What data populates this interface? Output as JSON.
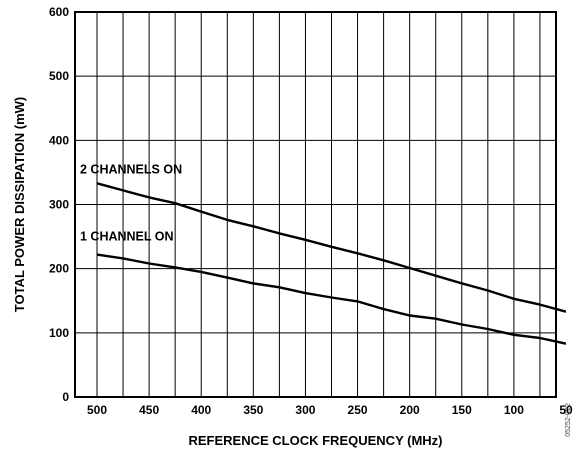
{
  "chart_data": {
    "type": "line",
    "xlabel": "REFERENCE CLOCK FREQUENCY (MHz)",
    "ylabel": "TOTAL POWER DISSIPATION (mW)",
    "xlim": [
      500,
      50
    ],
    "ylim": [
      0,
      600
    ],
    "x_reversed": true,
    "grid": true,
    "xticks": [
      500,
      450,
      400,
      350,
      300,
      250,
      200,
      150,
      100,
      50
    ],
    "yticks": [
      0,
      100,
      200,
      300,
      400,
      500,
      600
    ],
    "series": [
      {
        "name": "2 CHANNELS ON",
        "x": [
          500,
          475,
          450,
          425,
          400,
          375,
          350,
          325,
          300,
          275,
          250,
          225,
          200,
          175,
          150,
          125,
          100,
          75,
          50
        ],
        "values": [
          333,
          322,
          311,
          302,
          289,
          276,
          266,
          255,
          245,
          234,
          224,
          213,
          201,
          189,
          177,
          166,
          153,
          144,
          133
        ]
      },
      {
        "name": "1 CHANNEL ON",
        "x": [
          500,
          475,
          450,
          425,
          400,
          375,
          350,
          325,
          300,
          275,
          250,
          225,
          200,
          175,
          150,
          125,
          100,
          75,
          50
        ],
        "values": [
          222,
          216,
          208,
          202,
          195,
          186,
          177,
          171,
          162,
          155,
          149,
          137,
          127,
          122,
          113,
          106,
          97,
          92,
          83
        ]
      }
    ]
  },
  "figure_id": "05252-022"
}
